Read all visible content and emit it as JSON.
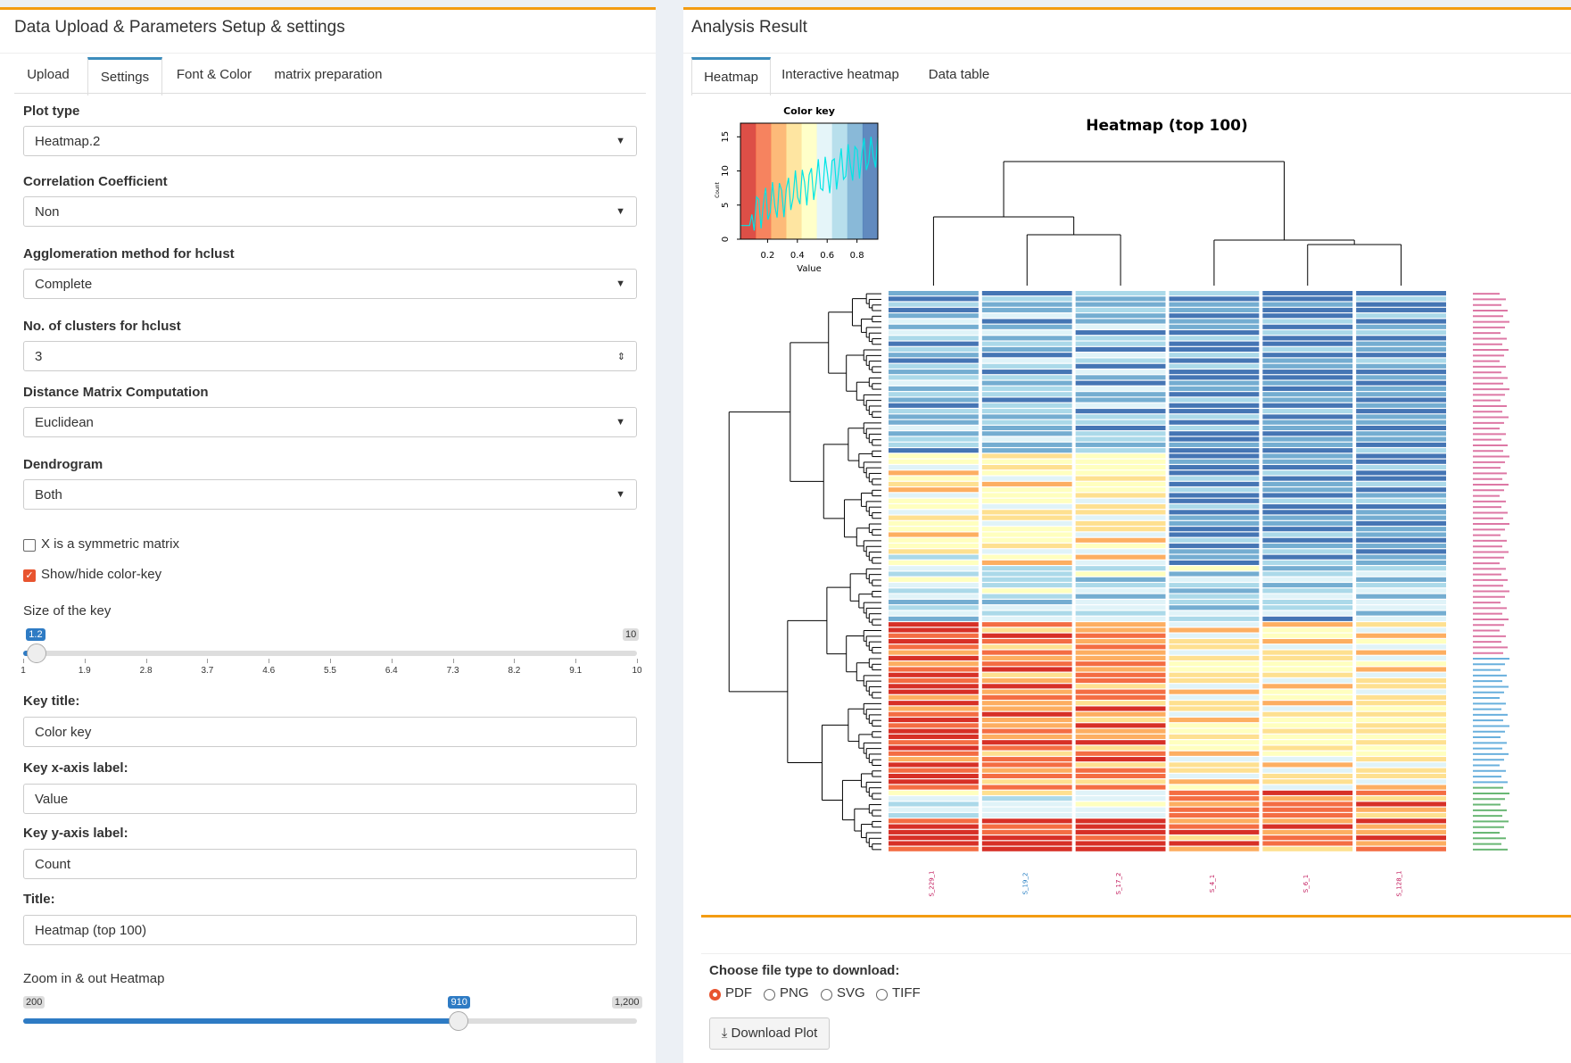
{
  "left_panel": {
    "title": "Data Upload & Parameters Setup & settings",
    "tabs": [
      "Upload",
      "Settings",
      "Font & Color",
      "matrix preparation"
    ],
    "selects": [
      {
        "label": "Plot type",
        "value": "Heatmap.2"
      },
      {
        "label": "Correlation Coefficient",
        "value": "Non"
      },
      {
        "label": "Agglomeration method for hclust",
        "value": "Complete"
      },
      {
        "label": "No. of clusters for hclust",
        "value": 3
      },
      {
        "label": "Distance Matrix Computation",
        "value": "Euclidean"
      },
      {
        "label": "Dendrogram",
        "value": "Both"
      }
    ],
    "checkboxes": [
      {
        "label": "X is a symmetric matrix",
        "checked": false
      },
      {
        "label": "Show/hide color-key",
        "checked": true
      }
    ],
    "key_size": {
      "label": "Size of the key",
      "min": 1,
      "max": 10,
      "value": 1.2,
      "ticks": [
        1,
        1.9,
        2.8,
        3.7,
        4.6,
        5.5,
        6.4,
        7.3,
        8.2,
        9.1,
        10
      ]
    },
    "text_inputs": [
      {
        "label": "Key title:",
        "value": "Color key"
      },
      {
        "label": "Key x-axis label:",
        "value": "Value"
      },
      {
        "label": "Key y-axis label:",
        "value": "Count"
      },
      {
        "label": "Title:",
        "value": "Heatmap (top 100)"
      }
    ],
    "zoom": {
      "label": "Zoom in & out Heatmap",
      "min": 200,
      "max": {
        "value": 1200,
        "label": "1,200"
      },
      "value": 910
    }
  },
  "right_panel": {
    "title": "Analysis Result",
    "tabs": [
      "Heatmap",
      "Interactive heatmap",
      "Data table"
    ],
    "heatmap": {
      "title": "Heatmap (top 100)",
      "columns": [
        "S_229_1",
        "S_19_2",
        "S_17_2",
        "S_4_1",
        "S_6_1",
        "S_128_1"
      ],
      "color_key": {
        "title": "Color key",
        "xlabel": "Value",
        "ylabel": "Count",
        "xlim": [
          0.018,
          0.94
        ],
        "ylim": [
          0,
          17
        ],
        "xticks": [
          0.2,
          0.4,
          0.6,
          0.8
        ],
        "yticks": [
          0,
          5,
          10,
          15
        ]
      }
    },
    "download": {
      "label": "Choose file type to download:",
      "options": [
        "PDF",
        "PNG",
        "SVG",
        "TIFF"
      ],
      "selected": "PDF",
      "button": "Download Plot"
    }
  }
}
